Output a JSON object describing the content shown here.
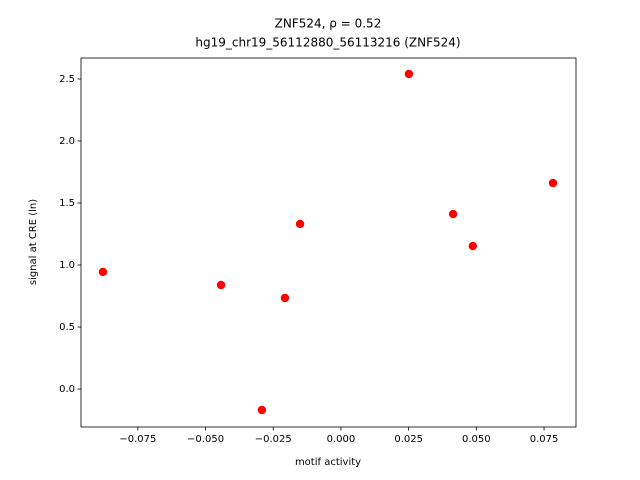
{
  "chart_data": {
    "type": "scatter",
    "title": "ZNF524, ρ = 0.52",
    "subtitle": "hg19_chr19_56112880_56113216 (ZNF524)",
    "x_label": "motif activity",
    "y_label": "signal at CRE (ln)",
    "color": "#ff0000",
    "x": [
      -0.0879,
      -0.0443,
      -0.0292,
      -0.0207,
      -0.0151,
      0.0251,
      0.0414,
      0.0487,
      0.0783
    ],
    "values": [
      0.944,
      0.839,
      -0.169,
      0.734,
      1.331,
      2.54,
      1.411,
      1.153,
      1.661
    ],
    "xlim": [
      -0.096,
      0.0868
    ],
    "ylim": [
      -0.306,
      2.669
    ],
    "xticks": [
      {
        "value": -0.075,
        "label": "−0.075"
      },
      {
        "value": -0.05,
        "label": "−0.050"
      },
      {
        "value": -0.025,
        "label": "−0.025"
      },
      {
        "value": 0,
        "label": "0.000"
      },
      0.025,
      {
        "value": 0.05,
        "label": "0.050"
      },
      0.075
    ],
    "yticks": [
      {
        "value": 0,
        "label": "0.0"
      },
      0.5,
      {
        "value": 1,
        "label": "1.0"
      },
      1.5,
      {
        "value": 2,
        "label": "2.0"
      },
      2.5
    ]
  }
}
